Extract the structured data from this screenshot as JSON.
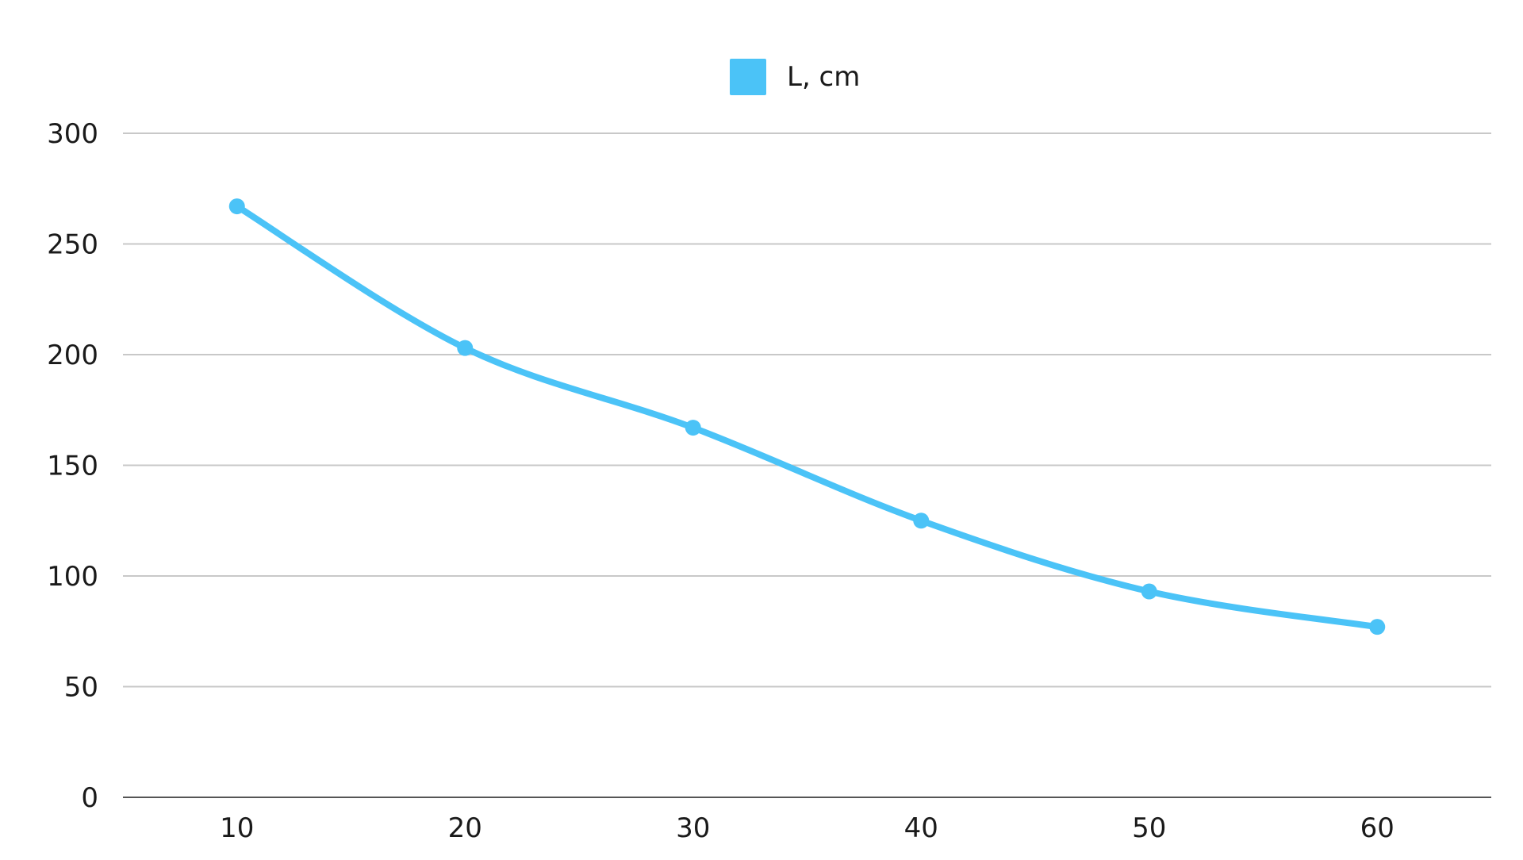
{
  "chart_data": {
    "type": "line",
    "smooth": true,
    "x": [
      10,
      20,
      30,
      40,
      50,
      60
    ],
    "series": [
      {
        "name": "L, cm",
        "color": "#4BC3F7",
        "values": [
          267,
          203,
          167,
          125,
          93,
          77
        ]
      }
    ],
    "ylim": [
      0,
      300
    ],
    "yticks": [
      0,
      50,
      100,
      150,
      200,
      250,
      300
    ],
    "xticks": [
      10,
      20,
      30,
      40,
      50,
      60
    ],
    "grid": true,
    "legend_position": "top-center",
    "grid_color": "#C8C8C8",
    "axis_color": "#555555"
  }
}
